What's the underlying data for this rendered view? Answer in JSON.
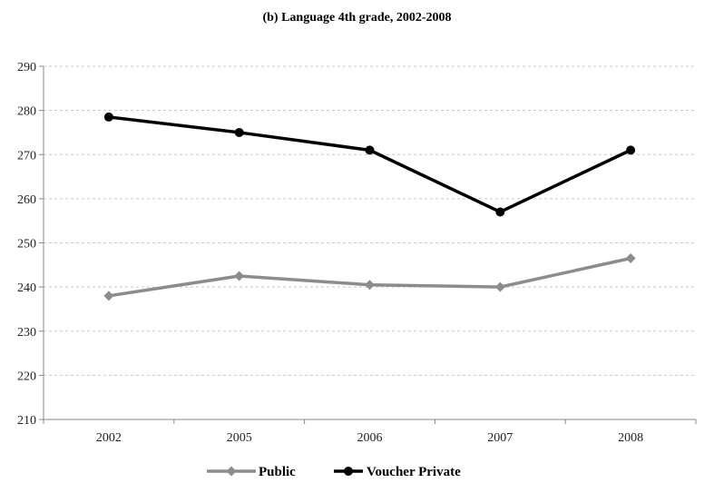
{
  "chart_data": {
    "type": "line",
    "title": "(b)  Language 4th grade, 2002-2008",
    "xlabel": "",
    "ylabel": "",
    "categories": [
      "2002",
      "2005",
      "2006",
      "2007",
      "2008"
    ],
    "ylim": [
      210,
      290
    ],
    "yticks": [
      210,
      220,
      230,
      240,
      250,
      260,
      270,
      280,
      290
    ],
    "grid": "horizontal dashed",
    "legend_position": "bottom",
    "series": [
      {
        "name": "Public",
        "values": [
          238,
          242.5,
          240.5,
          240,
          246.5
        ],
        "color": "#8c8c8c",
        "marker": "diamond"
      },
      {
        "name": "Voucher Private",
        "values": [
          278.5,
          275,
          271,
          257,
          271
        ],
        "color": "#000000",
        "marker": "circle"
      }
    ]
  }
}
